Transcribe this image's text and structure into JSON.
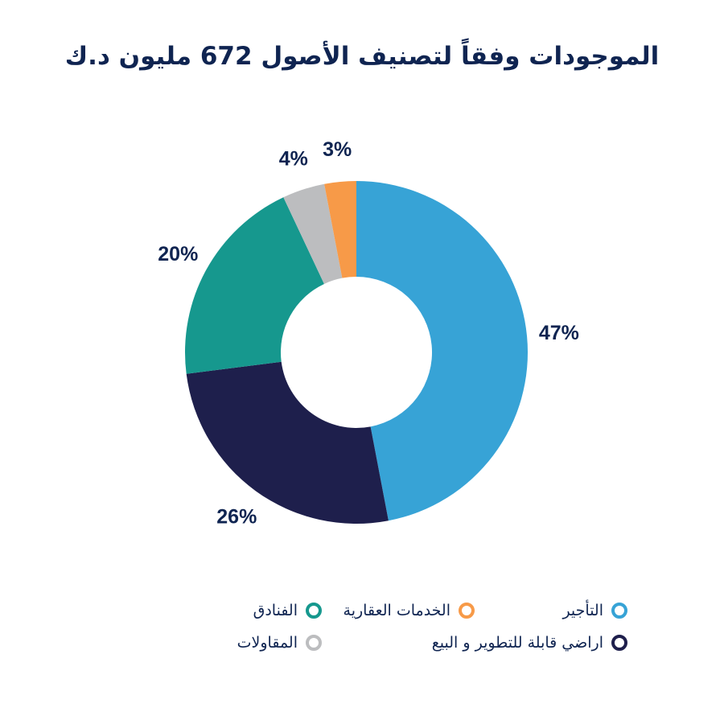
{
  "chart_data": {
    "type": "pie",
    "title": "الموجودات وفقاً لتصنيف الأصول 672 مليون د.ك",
    "categories": [
      "التأجير",
      "اراضي قابلة للتطوير و البيع",
      "الفنادق",
      "المقاولات",
      "الخدمات العقارية"
    ],
    "values": [
      47,
      26,
      20,
      4,
      3
    ],
    "value_labels": [
      "47%",
      "26%",
      "20%",
      "4%",
      "3%"
    ],
    "colors": [
      "#37a3d6",
      "#1e1f4c",
      "#16988e",
      "#bcbdbf",
      "#f79a48"
    ],
    "donut": true,
    "start_angle_deg": 0,
    "direction": "clockwise",
    "legend_placement": "bottom"
  },
  "legend": {
    "items": [
      {
        "label": "التأجير",
        "color": "#37a3d6"
      },
      {
        "label": "الخدمات العقارية",
        "color": "#f79a48"
      },
      {
        "label": "الفنادق",
        "color": "#16988e"
      },
      {
        "label": "اراضي قابلة للتطوير و البيع",
        "color": "#1e1f4c"
      },
      {
        "label": "المقاولات",
        "color": "#bcbdbf"
      }
    ]
  }
}
